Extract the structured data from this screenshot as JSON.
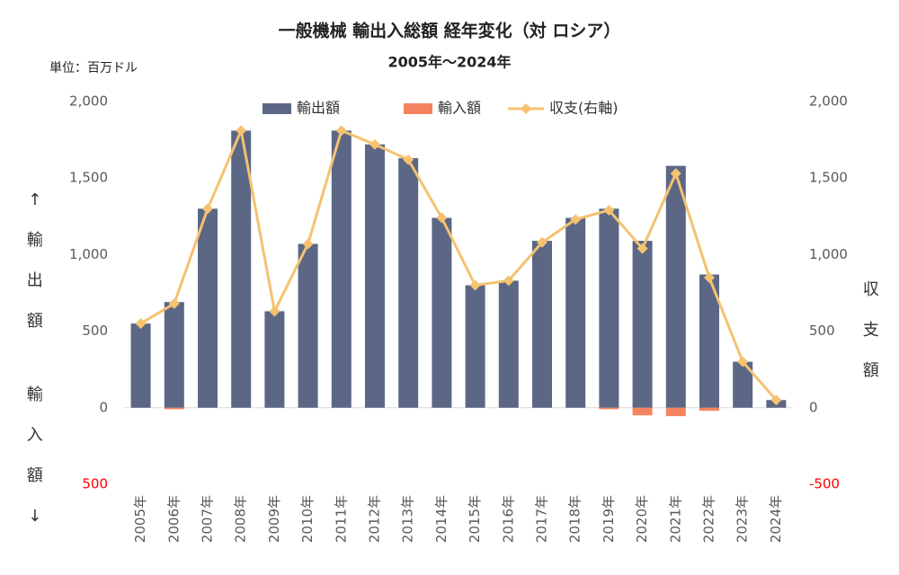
{
  "chart_data": {
    "type": "bar",
    "title": "一般機械 輸出入総額 経年変化（対 ロシア）",
    "subtitle": "2005年～2024年",
    "unit_label": "単位：百万ドル",
    "y_label_top": "↑輸出額",
    "y_label_bottom": "輸入額↓",
    "y2_label": "収支額",
    "categories": [
      "2005年",
      "2006年",
      "2007年",
      "2008年",
      "2009年",
      "2010年",
      "2011年",
      "2012年",
      "2013年",
      "2014年",
      "2015年",
      "2016年",
      "2017年",
      "2018年",
      "2019年",
      "2020年",
      "2021年",
      "2022年",
      "2023年",
      "2024年"
    ],
    "series": [
      {
        "name": "輸出額",
        "color": "#5b6784",
        "values": [
          550,
          690,
          1300,
          1810,
          630,
          1070,
          1810,
          1720,
          1630,
          1240,
          800,
          830,
          1090,
          1240,
          1300,
          1090,
          1580,
          870,
          300,
          50
        ]
      },
      {
        "name": "輸入額",
        "color": "#f4845f",
        "values": [
          0,
          -10,
          0,
          0,
          0,
          0,
          0,
          0,
          0,
          0,
          0,
          0,
          0,
          0,
          -10,
          -50,
          -55,
          -20,
          0,
          0
        ]
      },
      {
        "name": "収支(右軸)",
        "color": "#f5c270",
        "type": "line",
        "axis": "y2",
        "values": [
          550,
          680,
          1300,
          1810,
          630,
          1070,
          1810,
          1720,
          1620,
          1240,
          800,
          830,
          1080,
          1230,
          1290,
          1040,
          1530,
          850,
          300,
          50
        ]
      }
    ],
    "ylim": [
      -500,
      2000
    ],
    "yticks": [
      {
        "value": -500,
        "label": "500"
      },
      0,
      500,
      {
        "value": 1000,
        "label": "1,000"
      },
      {
        "value": 1500,
        "label": "1,500"
      },
      {
        "value": 2000,
        "label": "2,000"
      }
    ],
    "y2lim": [
      -500,
      2000
    ],
    "y2ticks": [
      -500,
      0,
      500,
      {
        "value": 1000,
        "label": "1,000"
      },
      {
        "value": 1500,
        "label": "1,500"
      },
      {
        "value": 2000,
        "label": "2,000"
      }
    ],
    "negative_tick_color": "#ff0000",
    "legend": "top"
  }
}
